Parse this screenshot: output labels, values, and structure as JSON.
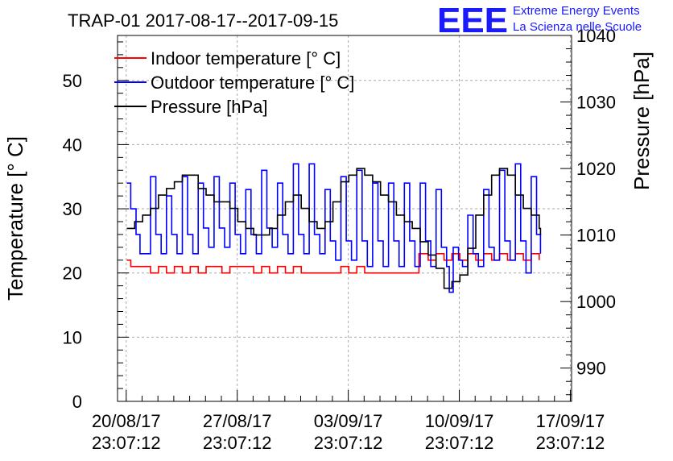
{
  "logo": {
    "letters": "EEE",
    "line1": "Extreme Energy Events",
    "line2": "La Scienza nelle Scuole",
    "color": "#1a1aff"
  },
  "chart_data": {
    "type": "line",
    "title": "TRAP-01 2017-08-17--2017-09-15",
    "ylabel": "Temperature [° C]",
    "y2label": "Pressure [hPa]",
    "xlabel": "",
    "xlim": [
      "2017-08-20T10:00",
      "2017-09-18T01:00"
    ],
    "ylim": [
      0,
      57
    ],
    "y2lim": [
      985,
      1040
    ],
    "xticks": [
      {
        "x": "2017-08-20T23:07:12",
        "line1": "20/08/17",
        "line2": "23:07:12"
      },
      {
        "x": "2017-08-27T23:07:12",
        "line1": "27/08/17",
        "line2": "23:07:12"
      },
      {
        "x": "2017-09-03T23:07:12",
        "line1": "03/09/17",
        "line2": "23:07:12"
      },
      {
        "x": "2017-09-10T23:07:12",
        "line1": "10/09/17",
        "line2": "23:07:12"
      },
      {
        "x": "2017-09-17T23:07:12",
        "line1": "17/09/17",
        "line2": "23:07:12"
      }
    ],
    "yticks": [
      "0",
      "10",
      "20",
      "30",
      "40",
      "50"
    ],
    "y2ticks": [
      "990",
      "1000",
      "1010",
      "1020",
      "1030",
      "1040"
    ],
    "grid": true,
    "legend_position": "top-left",
    "series": [
      {
        "name": "Indoor temperature [° C]",
        "color": "#ff0000",
        "axis": "left",
        "points": [
          [
            "2017-08-21T00:00",
            22
          ],
          [
            "2017-08-21T06:00",
            21
          ],
          [
            "2017-08-22T00:00",
            21
          ],
          [
            "2017-08-22T12:00",
            20
          ],
          [
            "2017-08-23T00:00",
            21
          ],
          [
            "2017-08-23T12:00",
            20
          ],
          [
            "2017-08-24T00:00",
            21
          ],
          [
            "2017-08-24T12:00",
            20
          ],
          [
            "2017-08-25T00:00",
            21
          ],
          [
            "2017-08-25T12:00",
            20
          ],
          [
            "2017-08-26T00:00",
            21
          ],
          [
            "2017-08-27T00:00",
            20
          ],
          [
            "2017-08-27T12:00",
            21
          ],
          [
            "2017-08-28T12:00",
            21
          ],
          [
            "2017-08-29T00:00",
            20
          ],
          [
            "2017-08-29T12:00",
            21
          ],
          [
            "2017-08-30T00:00",
            20
          ],
          [
            "2017-08-30T12:00",
            21
          ],
          [
            "2017-08-31T00:00",
            20
          ],
          [
            "2017-08-31T12:00",
            21
          ],
          [
            "2017-09-01T00:00",
            20
          ],
          [
            "2017-09-02T00:00",
            20
          ],
          [
            "2017-09-03T00:00",
            20
          ],
          [
            "2017-09-03T12:00",
            21
          ],
          [
            "2017-09-04T00:00",
            20
          ],
          [
            "2017-09-04T12:00",
            21
          ],
          [
            "2017-09-05T00:00",
            20
          ],
          [
            "2017-09-06T00:00",
            20
          ],
          [
            "2017-09-07T00:00",
            20
          ],
          [
            "2017-09-08T00:00",
            20
          ],
          [
            "2017-09-08T10:00",
            23
          ],
          [
            "2017-09-09T00:00",
            22
          ],
          [
            "2017-09-09T12:00",
            23
          ],
          [
            "2017-09-10T00:00",
            22
          ],
          [
            "2017-09-10T12:00",
            23
          ],
          [
            "2017-09-11T00:00",
            22
          ],
          [
            "2017-09-11T12:00",
            23
          ],
          [
            "2017-09-12T00:00",
            22
          ],
          [
            "2017-09-12T12:00",
            23
          ],
          [
            "2017-09-13T00:00",
            22
          ],
          [
            "2017-09-13T12:00",
            23
          ],
          [
            "2017-09-14T00:00",
            22
          ],
          [
            "2017-09-14T12:00",
            23
          ],
          [
            "2017-09-15T00:00",
            22
          ],
          [
            "2017-09-15T12:00",
            23
          ],
          [
            "2017-09-16T00:00",
            22
          ]
        ]
      },
      {
        "name": "Outdoor temperature [° C]",
        "color": "#0000ff",
        "axis": "left",
        "points": [
          [
            "2017-08-21T00:00",
            34
          ],
          [
            "2017-08-21T06:00",
            30
          ],
          [
            "2017-08-21T14:00",
            26
          ],
          [
            "2017-08-21T20:00",
            23
          ],
          [
            "2017-08-22T04:00",
            23
          ],
          [
            "2017-08-22T12:00",
            35
          ],
          [
            "2017-08-22T20:00",
            26
          ],
          [
            "2017-08-23T04:00",
            23
          ],
          [
            "2017-08-23T12:00",
            32
          ],
          [
            "2017-08-23T20:00",
            26
          ],
          [
            "2017-08-24T04:00",
            23
          ],
          [
            "2017-08-24T12:00",
            35
          ],
          [
            "2017-08-24T20:00",
            26
          ],
          [
            "2017-08-25T04:00",
            23
          ],
          [
            "2017-08-25T12:00",
            34
          ],
          [
            "2017-08-25T20:00",
            27
          ],
          [
            "2017-08-26T04:00",
            24
          ],
          [
            "2017-08-26T12:00",
            35
          ],
          [
            "2017-08-26T20:00",
            27
          ],
          [
            "2017-08-27T04:00",
            24
          ],
          [
            "2017-08-27T12:00",
            34
          ],
          [
            "2017-08-27T20:00",
            26
          ],
          [
            "2017-08-28T04:00",
            23
          ],
          [
            "2017-08-28T12:00",
            33
          ],
          [
            "2017-08-28T20:00",
            26
          ],
          [
            "2017-08-29T04:00",
            23
          ],
          [
            "2017-08-29T12:00",
            36
          ],
          [
            "2017-08-29T20:00",
            27
          ],
          [
            "2017-08-30T04:00",
            24
          ],
          [
            "2017-08-30T12:00",
            34
          ],
          [
            "2017-08-30T20:00",
            26
          ],
          [
            "2017-08-31T04:00",
            23
          ],
          [
            "2017-08-31T12:00",
            37
          ],
          [
            "2017-08-31T20:00",
            26
          ],
          [
            "2017-09-01T04:00",
            23
          ],
          [
            "2017-09-01T12:00",
            37
          ],
          [
            "2017-09-01T20:00",
            26
          ],
          [
            "2017-09-02T04:00",
            23
          ],
          [
            "2017-09-02T12:00",
            33
          ],
          [
            "2017-09-02T20:00",
            25
          ],
          [
            "2017-09-03T04:00",
            22
          ],
          [
            "2017-09-03T12:00",
            35
          ],
          [
            "2017-09-03T20:00",
            25
          ],
          [
            "2017-09-04T04:00",
            22
          ],
          [
            "2017-09-04T12:00",
            36
          ],
          [
            "2017-09-04T20:00",
            25
          ],
          [
            "2017-09-05T04:00",
            21
          ],
          [
            "2017-09-05T12:00",
            34
          ],
          [
            "2017-09-05T20:00",
            25
          ],
          [
            "2017-09-06T04:00",
            21
          ],
          [
            "2017-09-06T12:00",
            34
          ],
          [
            "2017-09-06T20:00",
            25
          ],
          [
            "2017-09-07T04:00",
            21
          ],
          [
            "2017-09-07T12:00",
            34
          ],
          [
            "2017-09-07T20:00",
            25
          ],
          [
            "2017-09-08T04:00",
            21
          ],
          [
            "2017-09-08T12:00",
            34
          ],
          [
            "2017-09-08T20:00",
            25
          ],
          [
            "2017-09-09T04:00",
            21
          ],
          [
            "2017-09-09T12:00",
            33
          ],
          [
            "2017-09-09T20:00",
            24
          ],
          [
            "2017-09-10T04:00",
            21
          ],
          [
            "2017-09-10T08:00",
            17
          ],
          [
            "2017-09-10T14:00",
            24
          ],
          [
            "2017-09-10T22:00",
            22
          ],
          [
            "2017-09-11T04:00",
            21
          ],
          [
            "2017-09-11T12:00",
            29
          ],
          [
            "2017-09-11T20:00",
            23
          ],
          [
            "2017-09-12T04:00",
            21
          ],
          [
            "2017-09-12T12:00",
            33
          ],
          [
            "2017-09-12T20:00",
            24
          ],
          [
            "2017-09-13T04:00",
            22
          ],
          [
            "2017-09-13T12:00",
            36
          ],
          [
            "2017-09-13T20:00",
            25
          ],
          [
            "2017-09-14T04:00",
            22
          ],
          [
            "2017-09-14T12:00",
            37
          ],
          [
            "2017-09-14T20:00",
            25
          ],
          [
            "2017-09-15T04:00",
            20
          ],
          [
            "2017-09-15T12:00",
            35
          ],
          [
            "2017-09-15T20:00",
            26
          ],
          [
            "2017-09-16T02:00",
            23
          ]
        ]
      },
      {
        "name": "Pressure [hPa]",
        "color": "#000000",
        "axis": "right",
        "points": [
          [
            "2017-08-21T00:00",
            1011
          ],
          [
            "2017-08-21T12:00",
            1012
          ],
          [
            "2017-08-22T00:00",
            1013
          ],
          [
            "2017-08-22T12:00",
            1014
          ],
          [
            "2017-08-23T00:00",
            1016
          ],
          [
            "2017-08-23T12:00",
            1017
          ],
          [
            "2017-08-24T00:00",
            1018
          ],
          [
            "2017-08-24T12:00",
            1019
          ],
          [
            "2017-08-25T00:00",
            1019
          ],
          [
            "2017-08-25T12:00",
            1017
          ],
          [
            "2017-08-26T00:00",
            1016
          ],
          [
            "2017-08-26T12:00",
            1015
          ],
          [
            "2017-08-27T00:00",
            1015
          ],
          [
            "2017-08-27T12:00",
            1014
          ],
          [
            "2017-08-28T00:00",
            1012
          ],
          [
            "2017-08-28T12:00",
            1011
          ],
          [
            "2017-08-29T00:00",
            1010
          ],
          [
            "2017-08-29T12:00",
            1010
          ],
          [
            "2017-08-30T00:00",
            1011
          ],
          [
            "2017-08-30T12:00",
            1013
          ],
          [
            "2017-08-31T00:00",
            1015
          ],
          [
            "2017-08-31T12:00",
            1016
          ],
          [
            "2017-09-01T00:00",
            1014
          ],
          [
            "2017-09-01T12:00",
            1012
          ],
          [
            "2017-09-02T00:00",
            1011
          ],
          [
            "2017-09-02T12:00",
            1012
          ],
          [
            "2017-09-03T00:00",
            1015
          ],
          [
            "2017-09-03T12:00",
            1018
          ],
          [
            "2017-09-04T00:00",
            1019
          ],
          [
            "2017-09-04T12:00",
            1020
          ],
          [
            "2017-09-05T00:00",
            1019
          ],
          [
            "2017-09-05T12:00",
            1018
          ],
          [
            "2017-09-06T00:00",
            1016
          ],
          [
            "2017-09-06T12:00",
            1015
          ],
          [
            "2017-09-07T00:00",
            1013
          ],
          [
            "2017-09-07T12:00",
            1012
          ],
          [
            "2017-09-08T00:00",
            1011
          ],
          [
            "2017-09-08T12:00",
            1009
          ],
          [
            "2017-09-09T00:00",
            1007
          ],
          [
            "2017-09-09T12:00",
            1005
          ],
          [
            "2017-09-10T00:00",
            1002
          ],
          [
            "2017-09-10T12:00",
            1003
          ],
          [
            "2017-09-11T00:00",
            1004
          ],
          [
            "2017-09-11T12:00",
            1008
          ],
          [
            "2017-09-12T00:00",
            1013
          ],
          [
            "2017-09-12T12:00",
            1016
          ],
          [
            "2017-09-13T00:00",
            1019
          ],
          [
            "2017-09-13T12:00",
            1020
          ],
          [
            "2017-09-14T00:00",
            1019
          ],
          [
            "2017-09-14T12:00",
            1016
          ],
          [
            "2017-09-15T00:00",
            1014
          ],
          [
            "2017-09-15T12:00",
            1013
          ],
          [
            "2017-09-16T00:00",
            1011
          ],
          [
            "2017-09-16T02:00",
            1010
          ]
        ]
      }
    ]
  }
}
